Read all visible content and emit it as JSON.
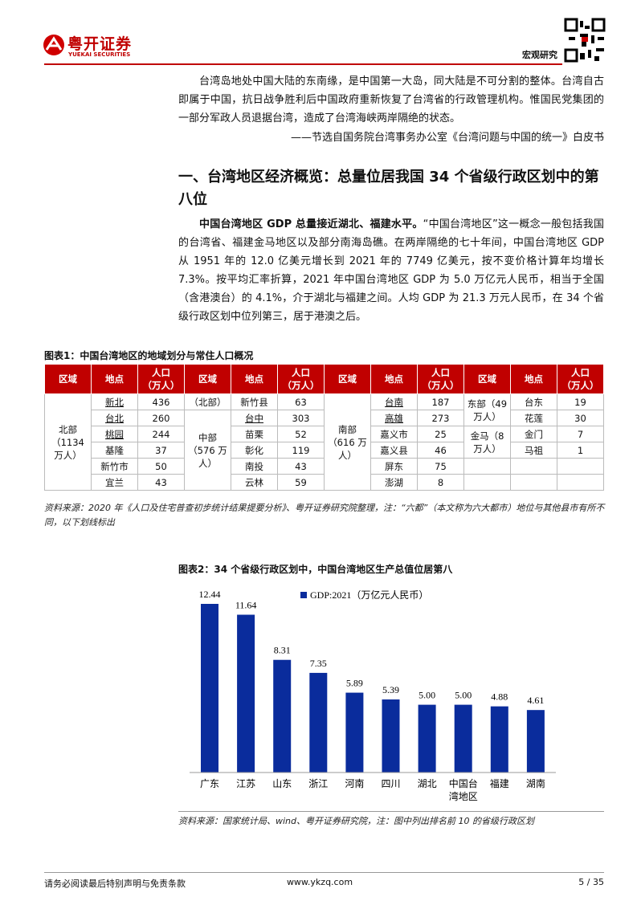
{
  "header": {
    "brand": "粤开证券",
    "brand_en": "YUEKAI SECURITIES",
    "section": "宏观研究"
  },
  "quote": {
    "text": "台湾岛地处中国大陆的东南缘，是中国第一大岛，同大陆是不可分割的整体。台湾自古即属于中国，抗日战争胜利后中国政府重新恢复了台湾省的行政管理机构。惟国民党集团的一部分军政人员退据台湾，造成了台湾海峡两岸隔绝的状态。",
    "source": "——节选自国务院台湾事务办公室《台湾问题与中国的统一》白皮书"
  },
  "heading": "一、台湾地区经济概览：总量位居我国 34 个省级行政区划中的第八位",
  "body": {
    "lead": "中国台湾地区 GDP 总量接近湖北、福建水平。",
    "text": "“中国台湾地区”这一概念一般包括我国的台湾省、福建金马地区以及部分南海岛礁。在两岸隔绝的七十年间，中国台湾地区 GDP 从 1951 年的 12.0 亿美元增长到 2021 年的 7749 亿美元，按不变价格计算年均增长 7.3%。按平均汇率折算，2021 年中国台湾地区 GDP 为 5.0 万亿元人民币，相当于全国（含港澳台）的 4.1%，介于湖北与福建之间。人均 GDP 为 21.3 万元人民币，在 34 个省级行政区划中位列第三，居于港澳之后。"
  },
  "table": {
    "title": "图表1：中国台湾地区的地域划分与常住人口概况",
    "headers": [
      "区域",
      "地点",
      "人口（万人）",
      "区域",
      "地点",
      "人口（万人）",
      "区域",
      "地点",
      "人口（万人）",
      "区域",
      "地点",
      "人口（万人）"
    ],
    "rows": [
      [
        "北部（1134 万人）",
        {
          "text": "新北",
          "underline": true
        },
        436,
        "（北部）",
        "新竹县",
        63,
        "南部（616 万人）",
        {
          "text": "台南",
          "underline": true
        },
        187,
        "东部（49 万人）",
        "台东",
        19
      ],
      [
        null,
        {
          "text": "台北",
          "underline": true
        },
        260,
        "中部（576 万人）",
        {
          "text": "台中",
          "underline": true
        },
        303,
        null,
        {
          "text": "高雄",
          "underline": true
        },
        273,
        null,
        "花莲",
        30
      ],
      [
        null,
        {
          "text": "桃园",
          "underline": true
        },
        244,
        null,
        "苗栗",
        52,
        null,
        "嘉义市",
        25,
        "金马（8 万人）",
        "金门",
        7
      ],
      [
        null,
        "基隆",
        37,
        null,
        "彰化",
        119,
        null,
        "嘉义县",
        46,
        null,
        "马祖",
        1
      ],
      [
        null,
        "新竹市",
        50,
        null,
        "南投",
        43,
        null,
        "屏东",
        75,
        null,
        null,
        null
      ],
      [
        null,
        "宜兰",
        43,
        null,
        "云林",
        59,
        null,
        "澎湖",
        8,
        null,
        null,
        null
      ]
    ],
    "source": "资料来源：2020 年《人口及住宅普查初步统计结果提要分析》、粤开证券研究院整理，注：“六都”（本文称为六大都市）地位与其他县市有所不同，以下划线标出"
  },
  "figure": {
    "title": "图表2：34 个省级行政区划中，中国台湾地区生产总值位居第八",
    "chart_data": {
      "type": "bar",
      "categories": [
        "广东",
        "江苏",
        "山东",
        "浙江",
        "河南",
        "四川",
        "湖北",
        "中国台湾地区",
        "福建",
        "湖南"
      ],
      "series": [
        {
          "name": "GDP:2021（万亿元人民币）",
          "color": "#0a2c9c",
          "values": [
            12.44,
            11.64,
            8.31,
            7.35,
            5.89,
            5.39,
            5.0,
            5.0,
            4.88,
            4.61
          ],
          "value_labels": [
            "12.44",
            "11.64",
            "8.31",
            "7.35",
            "5.89",
            "5.39",
            "5.00",
            "5.00",
            "4.88",
            "4.61"
          ]
        }
      ],
      "legend": "top"
    },
    "source": "资料来源：国家统计局、wind、粤开证券研究院，注：图中列出排名前 10 的省级行政区划"
  },
  "footer": {
    "disclaimer": "请务必阅读最后特别声明与免责条款",
    "url": "www.ykzq.com",
    "page": "5 / 35"
  }
}
